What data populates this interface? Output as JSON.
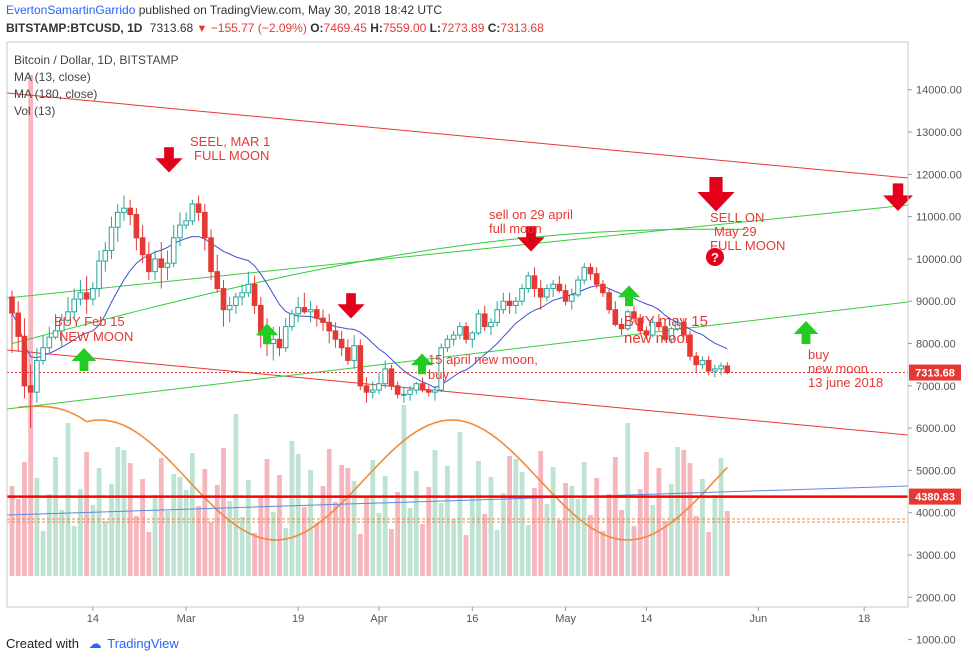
{
  "header": {
    "author": "EvertonSamartinGarrido",
    "published_text": "published on TradingView.com, May 30, 2018 18:42 UTC",
    "symbol": "BITSTAMP:BTCUSD, 1D",
    "last": "7313.68",
    "change": "−155.77 (−2.09%)",
    "o_label": "O:",
    "o_value": "7469.45",
    "h_label": "H:",
    "h_value": "7559.00",
    "l_label": "L:",
    "l_value": "7273.89",
    "c_label": "C:",
    "c_value": "7313.68"
  },
  "legend": {
    "title": "Bitcoin / Dollar, 1D, BITSTAMP",
    "ma1": "MA (13, close)",
    "ma2": "MA (180, close)",
    "vol": "Vol (13)"
  },
  "footer": {
    "created": "Created with",
    "brand": "TradingView"
  },
  "colors": {
    "up": "#26a69a",
    "up_fill": "#ffffff",
    "down": "#e53935",
    "ma13": "#3f51d6",
    "ma180": "#2ecc40",
    "channel_red": "#e53935",
    "channel_green": "#3ec93e",
    "level": "#ff0000",
    "vol_ma": "#f08a3c",
    "vol_up": "#bfe3d3",
    "vol_down": "#f6b6be",
    "trend_blue": "#5b8ad9",
    "annotation": "#e53935",
    "arrow_up": "#22cc22",
    "arrow_down": "#e3001b"
  },
  "chart_data": {
    "type": "candlestick",
    "title": "Bitcoin / Dollar, 1D, BITSTAMP",
    "ylim": [
      1000,
      14000
    ],
    "y_ticks": [
      1000,
      2000,
      3000,
      4000,
      5000,
      6000,
      7000,
      8000,
      9000,
      10000,
      11000,
      12000,
      13000,
      14000
    ],
    "y_tick_labels": [
      "1000.00",
      "2000.00",
      "3000.00",
      "4000.00",
      "5000.00",
      "6000.00",
      "7000.00",
      "8000.00",
      "9000.00",
      "10000.00",
      "11000.00",
      "12000.00",
      "13000.00",
      "14000.00"
    ],
    "x_ticks": [
      {
        "label": "14",
        "day": 13
      },
      {
        "label": "Mar",
        "day": 28
      },
      {
        "label": "19",
        "day": 46
      },
      {
        "label": "Apr",
        "day": 59
      },
      {
        "label": "16",
        "day": 74
      },
      {
        "label": "May",
        "day": 89
      },
      {
        "label": "14",
        "day": 102
      },
      {
        "label": "Jun",
        "day": 120
      },
      {
        "label": "18",
        "day": 137
      }
    ],
    "candles_start": "2018-02-01",
    "candles": [
      [
        9100,
        9250,
        7780,
        8720
      ],
      [
        8720,
        9000,
        7800,
        8170
      ],
      [
        8170,
        8600,
        6700,
        7000
      ],
      [
        7000,
        7500,
        6000,
        6850
      ],
      [
        6850,
        7900,
        6600,
        7600
      ],
      [
        7600,
        8200,
        7500,
        7900
      ],
      [
        7900,
        8400,
        7750,
        8150
      ],
      [
        8150,
        8700,
        8100,
        8300
      ],
      [
        8300,
        8700,
        7900,
        8550
      ],
      [
        8550,
        9100,
        8500,
        8750
      ],
      [
        8750,
        9300,
        8600,
        9050
      ],
      [
        9050,
        9500,
        8900,
        9200
      ],
      [
        9200,
        9600,
        8700,
        9050
      ],
      [
        9050,
        9450,
        8900,
        9300
      ],
      [
        9300,
        10200,
        9100,
        9950
      ],
      [
        9950,
        10400,
        9700,
        10200
      ],
      [
        10200,
        11000,
        10000,
        10750
      ],
      [
        10750,
        11300,
        10400,
        11100
      ],
      [
        11100,
        11500,
        10900,
        11200
      ],
      [
        11200,
        11400,
        10800,
        11050
      ],
      [
        11050,
        11200,
        10200,
        10500
      ],
      [
        10500,
        10800,
        9900,
        10100
      ],
      [
        10100,
        10400,
        9500,
        9700
      ],
      [
        9700,
        10200,
        9500,
        10000
      ],
      [
        10000,
        10400,
        9300,
        9800
      ],
      [
        9800,
        10200,
        9500,
        9900
      ],
      [
        9900,
        10800,
        9800,
        10500
      ],
      [
        10500,
        11100,
        10300,
        10800
      ],
      [
        10800,
        11100,
        10700,
        10900
      ],
      [
        10900,
        11400,
        10800,
        11300
      ],
      [
        11300,
        11500,
        10900,
        11100
      ],
      [
        11100,
        11300,
        10200,
        10500
      ],
      [
        10500,
        10700,
        9500,
        9700
      ],
      [
        9700,
        10100,
        9200,
        9300
      ],
      [
        9300,
        9500,
        8400,
        8800
      ],
      [
        8800,
        9100,
        8500,
        8900
      ],
      [
        8900,
        9200,
        8700,
        9100
      ],
      [
        9100,
        9400,
        8900,
        9200
      ],
      [
        9200,
        9700,
        9100,
        9400
      ],
      [
        9400,
        9600,
        8700,
        8900
      ],
      [
        8900,
        9100,
        7900,
        8200
      ],
      [
        8200,
        8600,
        7700,
        8000
      ],
      [
        8000,
        8400,
        7600,
        8100
      ],
      [
        8100,
        8400,
        7700,
        7900
      ],
      [
        7900,
        8600,
        7800,
        8400
      ],
      [
        8400,
        8800,
        8300,
        8700
      ],
      [
        8700,
        9100,
        8500,
        8850
      ],
      [
        8850,
        9200,
        8700,
        8750
      ],
      [
        8750,
        9000,
        8500,
        8800
      ],
      [
        8800,
        8900,
        8400,
        8600
      ],
      [
        8600,
        8800,
        8300,
        8500
      ],
      [
        8500,
        8700,
        8000,
        8300
      ],
      [
        8300,
        8500,
        7900,
        8100
      ],
      [
        8100,
        8300,
        7700,
        7900
      ],
      [
        7900,
        8100,
        7500,
        7600
      ],
      [
        7600,
        8200,
        7400,
        7950
      ],
      [
        7950,
        8100,
        6900,
        7000
      ],
      [
        7000,
        7200,
        6600,
        6850
      ],
      [
        6850,
        7100,
        6700,
        6900
      ],
      [
        6900,
        7300,
        6800,
        7050
      ],
      [
        7050,
        7600,
        6950,
        7400
      ],
      [
        7400,
        7500,
        6900,
        7000
      ],
      [
        7000,
        7100,
        6700,
        6800
      ],
      [
        6800,
        6950,
        6600,
        6800
      ],
      [
        6800,
        7000,
        6650,
        6900
      ],
      [
        6900,
        7100,
        6800,
        7050
      ],
      [
        7050,
        7200,
        6850,
        6900
      ],
      [
        6900,
        7000,
        6750,
        6850
      ],
      [
        6850,
        7000,
        6650,
        6900
      ],
      [
        6900,
        8000,
        6850,
        7900
      ],
      [
        7900,
        8200,
        7800,
        8100
      ],
      [
        8100,
        8300,
        7950,
        8200
      ],
      [
        8200,
        8500,
        8100,
        8400
      ],
      [
        8400,
        8500,
        8000,
        8100
      ],
      [
        8100,
        8300,
        7900,
        8250
      ],
      [
        8250,
        8800,
        8200,
        8700
      ],
      [
        8700,
        8900,
        8300,
        8400
      ],
      [
        8400,
        8600,
        8200,
        8500
      ],
      [
        8500,
        9000,
        8400,
        8800
      ],
      [
        8800,
        9200,
        8700,
        9000
      ],
      [
        9000,
        9200,
        8700,
        8900
      ],
      [
        8900,
        9100,
        8700,
        9000
      ],
      [
        9000,
        9400,
        8900,
        9300
      ],
      [
        9300,
        9700,
        9200,
        9600
      ],
      [
        9600,
        9800,
        9100,
        9300
      ],
      [
        9300,
        9500,
        8800,
        9100
      ],
      [
        9100,
        9400,
        9000,
        9300
      ],
      [
        9300,
        9500,
        9100,
        9400
      ],
      [
        9400,
        9600,
        9200,
        9250
      ],
      [
        9250,
        9400,
        8900,
        9000
      ],
      [
        9000,
        9300,
        8800,
        9150
      ],
      [
        9150,
        9600,
        9100,
        9500
      ],
      [
        9500,
        9900,
        9400,
        9800
      ],
      [
        9800,
        9900,
        9500,
        9650
      ],
      [
        9650,
        9800,
        9300,
        9400
      ],
      [
        9400,
        9500,
        9100,
        9200
      ],
      [
        9200,
        9300,
        8700,
        8800
      ],
      [
        8800,
        9000,
        8400,
        8450
      ],
      [
        8450,
        8600,
        8200,
        8350
      ],
      [
        8350,
        8800,
        8300,
        8750
      ],
      [
        8750,
        8900,
        8500,
        8600
      ],
      [
        8600,
        8700,
        8200,
        8300
      ],
      [
        8300,
        8400,
        8100,
        8200
      ],
      [
        8200,
        8600,
        8150,
        8500
      ],
      [
        8500,
        8700,
        8300,
        8400
      ],
      [
        8400,
        8500,
        8050,
        8100
      ],
      [
        8100,
        8400,
        8000,
        8350
      ],
      [
        8350,
        8600,
        8300,
        8500
      ],
      [
        8500,
        8600,
        8100,
        8200
      ],
      [
        8200,
        8300,
        7600,
        7700
      ],
      [
        7700,
        7800,
        7300,
        7500
      ],
      [
        7500,
        7700,
        7400,
        7600
      ],
      [
        7600,
        7700,
        7250,
        7350
      ],
      [
        7350,
        7500,
        7200,
        7400
      ],
      [
        7400,
        7550,
        7250,
        7470
      ],
      [
        7470,
        7559,
        7274,
        7314
      ]
    ],
    "annotations": [
      "SEEL, MAR  1",
      "FULL MOON",
      "BUY  Feb 15",
      "NEW MOON",
      "sell on 29 april",
      "full moon",
      "SELL ON",
      "May 29",
      "FULL MOON",
      "15 april new moon,",
      "buy",
      "BUY may 15",
      "new moon",
      "buy",
      "new moon",
      "13  june 2018"
    ],
    "price_labels": [
      "7313.68",
      "4380.83"
    ],
    "levels": [
      4380.83
    ],
    "series": [
      {
        "name": "MA (13, close)"
      },
      {
        "name": "MA (180, close)"
      },
      {
        "name": "Vol (13)"
      }
    ],
    "grid": false,
    "legend_position": "top-left"
  }
}
